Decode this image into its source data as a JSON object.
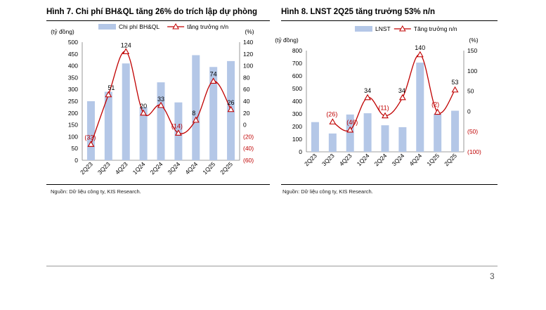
{
  "page_number": "3",
  "colors": {
    "bar": "#b4c7e7",
    "line": "#c00000",
    "neg_label": "#c00000",
    "axis": "#7f7f7f"
  },
  "chart_data": [
    {
      "type": "bar+line",
      "figure_label": "Hình 7. Chi phí BH&QL tăng 26% do trích lập dự phòng",
      "source": "Nguồn: Dữ liệu công ty, KIS Research.",
      "left_unit": "(tỷ đồng)",
      "right_unit": "(%)",
      "categories": [
        "2Q23",
        "3Q23",
        "4Q23",
        "1Q24",
        "2Q24",
        "3Q24",
        "4Q24",
        "1Q25",
        "2Q25"
      ],
      "bar_series": {
        "name": "Chi phí BH&QL",
        "values": [
          250,
          290,
          410,
          225,
          330,
          245,
          445,
          395,
          420
        ]
      },
      "line_series": {
        "name": "tăng trưởng n/n",
        "values": [
          -33,
          51,
          124,
          20,
          33,
          -14,
          8,
          74,
          26
        ]
      },
      "value_labels": [
        "(33)",
        "51",
        "124",
        "20",
        "33",
        "(14)",
        "8",
        "74",
        "26"
      ],
      "y_left": {
        "min": 0,
        "max": 500,
        "step": 50,
        "ticks": [
          "0",
          "50",
          "100",
          "150",
          "200",
          "250",
          "300",
          "350",
          "400",
          "450",
          "500"
        ]
      },
      "y_right": {
        "min": -60,
        "max": 140,
        "step": 20,
        "ticks": [
          "(60)",
          "(40)",
          "(20)",
          "0",
          "20",
          "40",
          "60",
          "80",
          "100",
          "120",
          "140"
        ]
      }
    },
    {
      "type": "bar+line",
      "figure_label": "Hình 8. LNST 2Q25 tăng trưởng 53% n/n",
      "source": "Nguồn: Dữ liệu công ty, KIS Research.",
      "left_unit": "(tỷ đồng)",
      "right_unit": "(%)",
      "categories": [
        "2Q23",
        "3Q23",
        "4Q23",
        "1Q24",
        "2Q24",
        "3Q24",
        "4Q24",
        "1Q25",
        "2Q25"
      ],
      "bar_series": {
        "name": "LNST",
        "values": [
          235,
          145,
          295,
          305,
          210,
          195,
          705,
          300,
          325
        ]
      },
      "line_series": {
        "name": "Tăng trưởng n/n",
        "values": [
          -26,
          -46,
          34,
          -11,
          34,
          140,
          -2,
          53
        ]
      },
      "line_x_index": [
        1,
        2,
        3,
        4,
        5,
        6,
        7,
        8
      ],
      "value_labels": [
        "(26)",
        "(46)",
        "34",
        "(11)",
        "34",
        "140",
        "(2)",
        "53"
      ],
      "y_left": {
        "min": 0,
        "max": 800,
        "step": 100,
        "ticks": [
          "0",
          "100",
          "200",
          "300",
          "400",
          "500",
          "600",
          "700",
          "800"
        ]
      },
      "y_right": {
        "min": -100,
        "max": 150,
        "step": 50,
        "ticks": [
          "(100)",
          "(50)",
          "0",
          "50",
          "100",
          "150"
        ]
      }
    }
  ]
}
